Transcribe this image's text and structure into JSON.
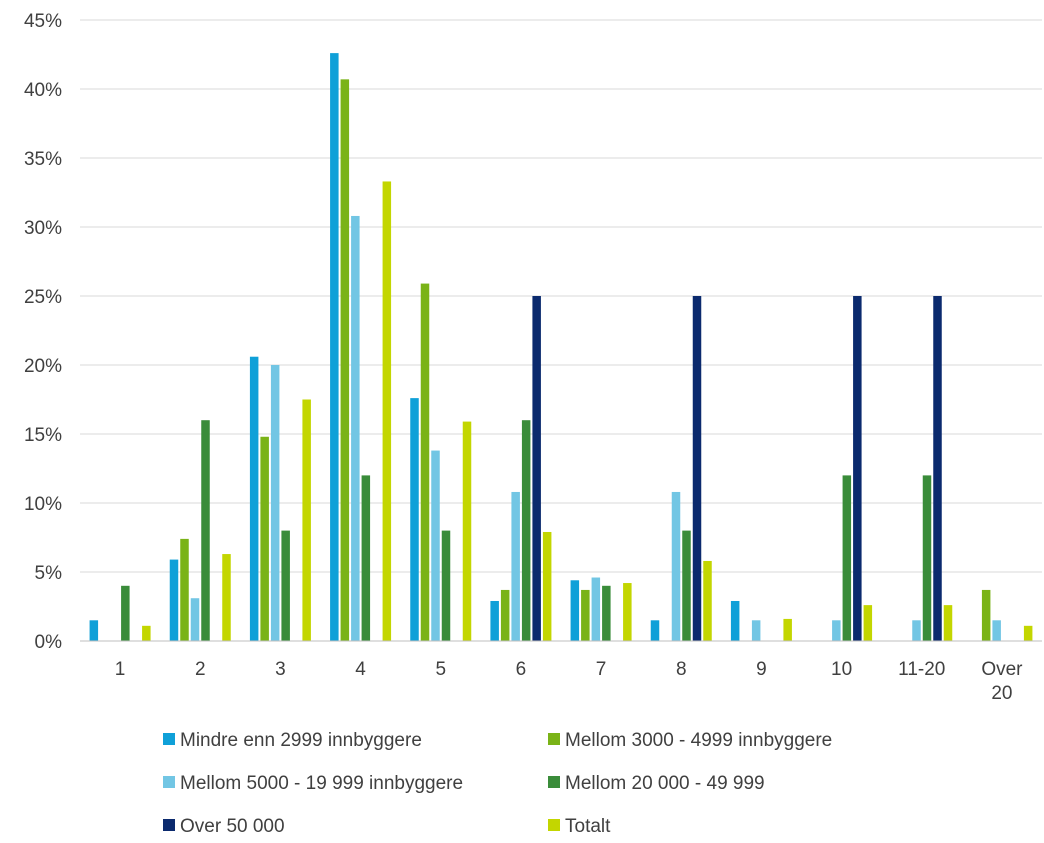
{
  "chart_data": {
    "type": "bar",
    "title": "",
    "xlabel": "",
    "ylabel": "",
    "ylim": [
      0,
      45
    ],
    "y_ticks": [
      "0%",
      "5%",
      "10%",
      "15%",
      "20%",
      "25%",
      "30%",
      "35%",
      "40%",
      "45%"
    ],
    "grid": true,
    "legend_position": "bottom",
    "categories": [
      "1",
      "2",
      "3",
      "4",
      "5",
      "6",
      "7",
      "8",
      "9",
      "10",
      "11-20",
      "Over 20"
    ],
    "series": [
      {
        "name": "Mindre enn 2999 innbyggere",
        "color": "#0fa0d8",
        "values": [
          1.5,
          5.9,
          20.6,
          42.6,
          17.6,
          2.9,
          4.4,
          1.5,
          2.9,
          0,
          0,
          0
        ]
      },
      {
        "name": "Mellom 3000 - 4999 innbyggere",
        "color": "#7ab317",
        "values": [
          0,
          7.4,
          14.8,
          40.7,
          25.9,
          3.7,
          3.7,
          0,
          0,
          0,
          0,
          3.7
        ]
      },
      {
        "name": "Mellom 5000 - 19 999 innbyggere",
        "color": "#72c6e4",
        "values": [
          0,
          3.1,
          20.0,
          30.8,
          13.8,
          10.8,
          4.6,
          10.8,
          1.5,
          1.5,
          1.5,
          1.5
        ]
      },
      {
        "name": "Mellom 20 000 - 49 999",
        "color": "#3a8c3a",
        "values": [
          4.0,
          16.0,
          8.0,
          12.0,
          8.0,
          16.0,
          4.0,
          8.0,
          0,
          12.0,
          12.0,
          0
        ]
      },
      {
        "name": "Over 50 000",
        "color": "#0b2a6e",
        "values": [
          0,
          0,
          0,
          0,
          0,
          25.0,
          0,
          25.0,
          0,
          25.0,
          25.0,
          0
        ]
      },
      {
        "name": "Totalt",
        "color": "#c3d600",
        "values": [
          1.1,
          6.3,
          17.5,
          33.3,
          15.9,
          7.9,
          4.2,
          5.8,
          1.6,
          2.6,
          2.6,
          1.1
        ]
      }
    ]
  }
}
